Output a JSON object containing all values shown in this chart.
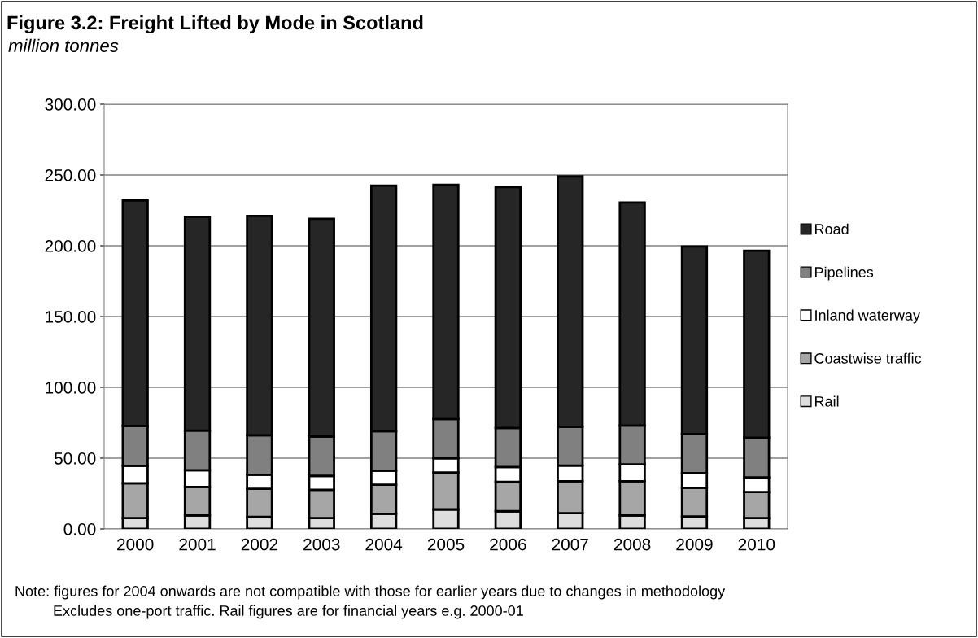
{
  "chart_data": {
    "type": "bar",
    "stacked": true,
    "title": "Figure 3.2: Freight Lifted by Mode in Scotland",
    "subtitle": "million tonnes",
    "categories": [
      "2000",
      "2001",
      "2002",
      "2003",
      "2004",
      "2005",
      "2006",
      "2007",
      "2008",
      "2009",
      "2010"
    ],
    "series": [
      {
        "name": "Rail",
        "color": "#dddddd",
        "values": [
          7.7,
          9.6,
          8.6,
          7.7,
          10.7,
          13.8,
          12.5,
          11.1,
          9.6,
          8.8,
          7.7
        ]
      },
      {
        "name": "Coastwise traffic",
        "color": "#a6a6a6",
        "values": [
          24.5,
          20.1,
          19.8,
          19.9,
          20.5,
          26.0,
          20.7,
          22.6,
          24.1,
          20.3,
          18.4
        ]
      },
      {
        "name": "Inland waterway",
        "color": "#ffffff",
        "values": [
          12.4,
          11.7,
          9.9,
          9.9,
          10.0,
          10.2,
          10.5,
          11.1,
          11.9,
          10.4,
          10.3
        ]
      },
      {
        "name": "Pipelines",
        "color": "#808080",
        "values": [
          28.2,
          28.1,
          27.8,
          27.8,
          27.8,
          27.6,
          27.6,
          27.4,
          27.4,
          27.5,
          28.0
        ]
      },
      {
        "name": "Road",
        "color": "#262626",
        "values": [
          159.2,
          151.0,
          154.9,
          153.7,
          173.5,
          165.4,
          170.2,
          176.8,
          157.5,
          132.5,
          132.1
        ]
      }
    ],
    "ylim": [
      0,
      300
    ],
    "yticks": [
      {
        "value": 0,
        "label": "0.00"
      },
      {
        "value": 50,
        "label": "50.00"
      },
      {
        "value": 100,
        "label": "100.00"
      },
      {
        "value": 150,
        "label": "150.00"
      },
      {
        "value": 200,
        "label": "200.00"
      },
      {
        "value": 250,
        "label": "250.00"
      },
      {
        "value": 300,
        "label": "300.00"
      }
    ],
    "grid": "y",
    "legend": "right",
    "annotations": [
      "Note: figures for 2004 onwards are not compatible with those for earlier years due to changes in methodology",
      "Excludes one-port traffic. Rail figures are for financial years e.g. 2000-01"
    ]
  }
}
